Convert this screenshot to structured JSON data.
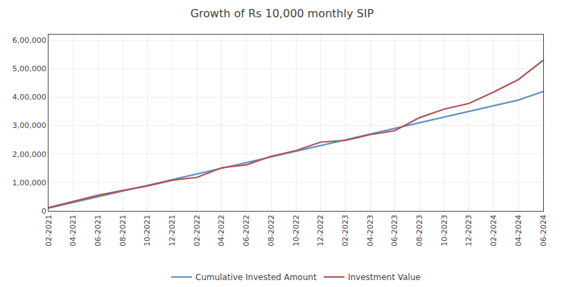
{
  "chart_data": {
    "type": "line",
    "title": "Growth of Rs 10,000 monthly SIP",
    "categories": [
      "02-2021",
      "04-2021",
      "06-2021",
      "08-2021",
      "10-2021",
      "12-2021",
      "02-2022",
      "04-2022",
      "06-2022",
      "08-2022",
      "10-2022",
      "12-2022",
      "02-2023",
      "04-2023",
      "06-2023",
      "08-2023",
      "10-2023",
      "12-2023",
      "02-2024",
      "04-2024",
      "06-2024"
    ],
    "series": [
      {
        "name": "Cumulative Invested Amount",
        "color": "#5b8fc9",
        "values": [
          10000,
          30000,
          50000,
          70000,
          90000,
          110000,
          130000,
          150000,
          170000,
          190000,
          210000,
          230000,
          250000,
          270000,
          290000,
          310000,
          330000,
          350000,
          370000,
          390000,
          420000
        ]
      },
      {
        "name": "Investment Value",
        "color": "#b55050",
        "values": [
          12000,
          33000,
          55000,
          72000,
          88000,
          108000,
          118000,
          152000,
          162000,
          192000,
          212000,
          242000,
          248000,
          268000,
          282000,
          328000,
          358000,
          378000,
          418000,
          462000,
          530000
        ]
      }
    ],
    "ylim": [
      0,
      620000
    ],
    "yticks": [
      0,
      {
        "value": 100000,
        "label": "1,00,000"
      },
      {
        "value": 200000,
        "label": "2,00,000"
      },
      {
        "value": 300000,
        "label": "3,00,000"
      },
      {
        "value": 400000,
        "label": "4,00,000"
      },
      {
        "value": 500000,
        "label": "5,00,000"
      },
      {
        "value": 600000,
        "label": "6,00,000"
      }
    ],
    "grid": true,
    "legend": "bottom"
  }
}
